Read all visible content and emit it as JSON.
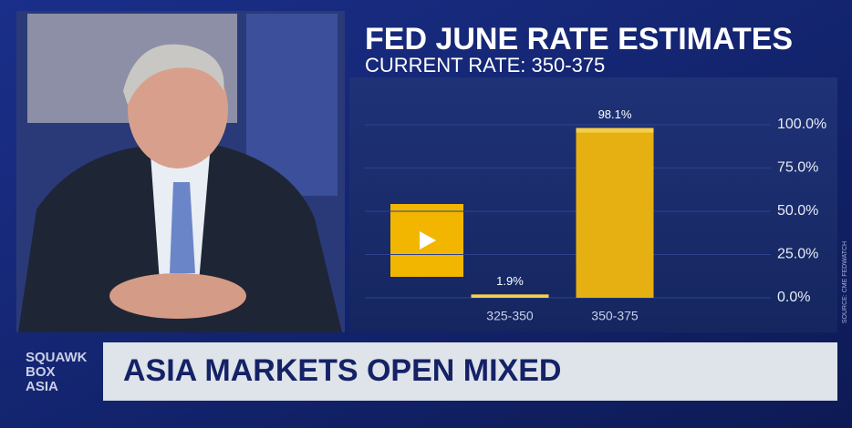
{
  "chart_data": {
    "type": "bar",
    "title": "FED JUNE RATE ESTIMATES",
    "subtitle": "CURRENT RATE: 350-375",
    "categories": [
      "325-350",
      "350-375"
    ],
    "values": [
      1.9,
      98.1
    ],
    "value_labels": [
      "1.9%",
      "98.1%"
    ],
    "color": "#e6b012",
    "ylim": [
      0,
      100
    ],
    "yticks": [
      {
        "value": 0,
        "label": "0.0%"
      },
      {
        "value": 25,
        "label": "25.0%"
      },
      {
        "value": 50,
        "label": "50.0%"
      },
      {
        "value": 75,
        "label": "75.0%"
      },
      {
        "value": 100,
        "label": "100.0%"
      }
    ],
    "grid": true,
    "source": "SOURCE: CME FEDWATCH"
  },
  "banner": {
    "show": [
      "SQUAWK",
      "BOX",
      "ASIA"
    ],
    "headline": "ASIA MARKETS OPEN MIXED"
  }
}
